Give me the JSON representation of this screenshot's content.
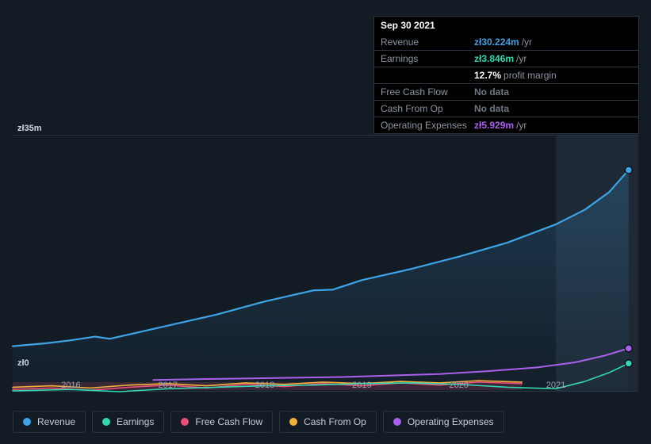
{
  "colors": {
    "bg": "#131b25",
    "grid": "#2a3642",
    "highlight_band": "#1e2935",
    "revenue": "#3ea4e8",
    "earnings": "#32d8b2",
    "fcf": "#e84f7a",
    "cash_op": "#f1b13b",
    "opex": "#a960ec",
    "text_muted": "#8b95a0",
    "text_white": "#ffffff",
    "nodata": "#6c7682"
  },
  "tooltip": {
    "date": "Sep 30 2021",
    "rows": [
      {
        "label": "Revenue",
        "value": "zł30.224m",
        "suffix": "/yr",
        "color": "#3ea4e8"
      },
      {
        "label": "Earnings",
        "value": "zł3.846m",
        "suffix": "/yr",
        "color": "#32d8b2"
      },
      {
        "label": "",
        "value": "12.7%",
        "suffix": "profit margin",
        "color": "#ffffff"
      },
      {
        "label": "Free Cash Flow",
        "value": "No data",
        "suffix": "",
        "color": "#6c7682"
      },
      {
        "label": "Cash From Op",
        "value": "No data",
        "suffix": "",
        "color": "#6c7682"
      },
      {
        "label": "Operating Expenses",
        "value": "zł5.929m",
        "suffix": "/yr",
        "color": "#a960ec"
      }
    ]
  },
  "chart": {
    "type": "line",
    "y_label_top": "zł35m",
    "y_label_bottom": "zł0",
    "ylim": [
      0,
      35
    ],
    "grid_y": [
      0,
      35
    ],
    "x_years": [
      2016,
      2017,
      2018,
      2019,
      2020,
      2021
    ],
    "x_start": 2015.4,
    "x_end": 2021.85,
    "highlight_band_x": [
      2021.0,
      2021.85
    ],
    "pink_band_x": [
      2015.4,
      2020.65
    ],
    "pink_band_y": [
      0.2,
      1.3
    ],
    "series": {
      "revenue": {
        "color": "#3ea4e8",
        "line_width": 2.2,
        "marker_x": 2021.75,
        "marker_y": 30.2,
        "data": [
          [
            2015.4,
            6.2
          ],
          [
            2015.75,
            6.6
          ],
          [
            2016.0,
            7.0
          ],
          [
            2016.25,
            7.5
          ],
          [
            2016.4,
            7.2
          ],
          [
            2016.6,
            7.8
          ],
          [
            2017.0,
            9.0
          ],
          [
            2017.5,
            10.5
          ],
          [
            2018.0,
            12.3
          ],
          [
            2018.5,
            13.8
          ],
          [
            2018.7,
            13.9
          ],
          [
            2019.0,
            15.2
          ],
          [
            2019.5,
            16.7
          ],
          [
            2020.0,
            18.4
          ],
          [
            2020.5,
            20.3
          ],
          [
            2021.0,
            22.8
          ],
          [
            2021.3,
            24.8
          ],
          [
            2021.55,
            27.2
          ],
          [
            2021.75,
            30.2
          ]
        ]
      },
      "earnings": {
        "color": "#32d8b2",
        "line_width": 1.6,
        "marker_x": 2021.75,
        "marker_y": 3.85,
        "data": [
          [
            2015.4,
            0.1
          ],
          [
            2016.0,
            0.3
          ],
          [
            2016.5,
            0.0
          ],
          [
            2017.0,
            0.4
          ],
          [
            2017.5,
            0.6
          ],
          [
            2018.0,
            0.8
          ],
          [
            2018.5,
            0.9
          ],
          [
            2019.0,
            1.1
          ],
          [
            2019.5,
            1.2
          ],
          [
            2020.0,
            1.0
          ],
          [
            2020.5,
            0.6
          ],
          [
            2021.0,
            0.4
          ],
          [
            2021.3,
            1.4
          ],
          [
            2021.55,
            2.6
          ],
          [
            2021.75,
            3.85
          ]
        ]
      },
      "fcf": {
        "color": "#e84f7a",
        "line_width": 1.6,
        "end_x": 2020.65,
        "data": [
          [
            2015.4,
            0.3
          ],
          [
            2015.8,
            0.5
          ],
          [
            2016.2,
            0.2
          ],
          [
            2016.6,
            0.6
          ],
          [
            2017.0,
            0.9
          ],
          [
            2017.4,
            0.5
          ],
          [
            2017.8,
            1.0
          ],
          [
            2018.2,
            0.7
          ],
          [
            2018.6,
            1.1
          ],
          [
            2019.0,
            0.8
          ],
          [
            2019.4,
            1.2
          ],
          [
            2019.8,
            0.9
          ],
          [
            2020.2,
            1.3
          ],
          [
            2020.65,
            1.1
          ]
        ]
      },
      "cash_op": {
        "color": "#f1b13b",
        "line_width": 1.6,
        "end_x": 2020.65,
        "data": [
          [
            2015.4,
            0.6
          ],
          [
            2015.8,
            0.8
          ],
          [
            2016.2,
            0.5
          ],
          [
            2016.6,
            0.9
          ],
          [
            2017.0,
            1.1
          ],
          [
            2017.4,
            0.8
          ],
          [
            2017.8,
            1.2
          ],
          [
            2018.2,
            1.0
          ],
          [
            2018.6,
            1.3
          ],
          [
            2019.0,
            1.1
          ],
          [
            2019.4,
            1.4
          ],
          [
            2019.8,
            1.2
          ],
          [
            2020.2,
            1.5
          ],
          [
            2020.65,
            1.3
          ]
        ]
      },
      "opex": {
        "color": "#a960ec",
        "line_width": 2.0,
        "start_x": 2016.85,
        "marker_x": 2021.75,
        "marker_y": 5.9,
        "data": [
          [
            2016.85,
            1.6
          ],
          [
            2017.3,
            1.7
          ],
          [
            2017.8,
            1.8
          ],
          [
            2018.3,
            1.9
          ],
          [
            2018.8,
            2.0
          ],
          [
            2019.3,
            2.2
          ],
          [
            2019.8,
            2.4
          ],
          [
            2020.3,
            2.8
          ],
          [
            2020.8,
            3.3
          ],
          [
            2021.2,
            4.0
          ],
          [
            2021.5,
            4.9
          ],
          [
            2021.75,
            5.9
          ]
        ]
      }
    }
  },
  "legend": [
    {
      "label": "Revenue",
      "color": "#3ea4e8"
    },
    {
      "label": "Earnings",
      "color": "#32d8b2"
    },
    {
      "label": "Free Cash Flow",
      "color": "#e84f7a"
    },
    {
      "label": "Cash From Op",
      "color": "#f1b13b"
    },
    {
      "label": "Operating Expenses",
      "color": "#a960ec"
    }
  ]
}
